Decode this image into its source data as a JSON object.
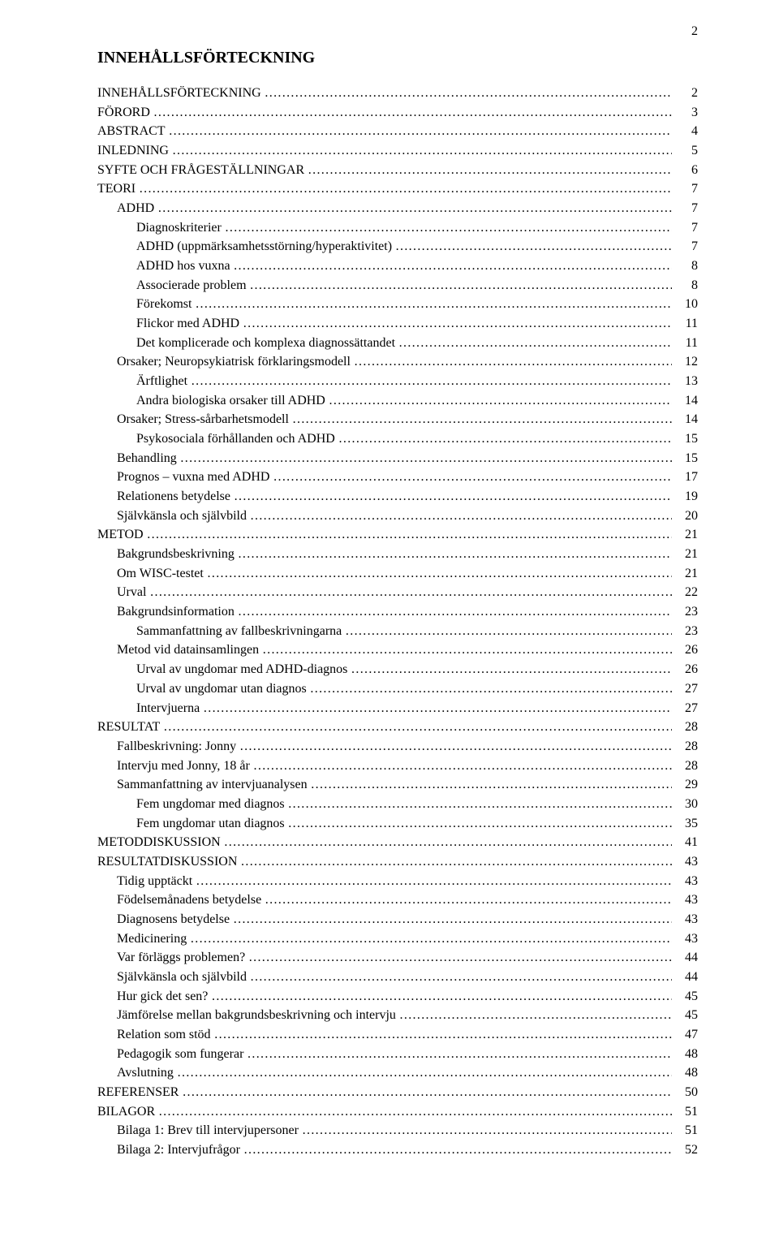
{
  "pageNumber": "2",
  "title": "INNEHÅLLSFÖRTECKNING",
  "toc": [
    {
      "label": "INNEHÅLLSFÖRTECKNING",
      "page": "2",
      "indent": 0
    },
    {
      "label": "FÖRORD",
      "page": "3",
      "indent": 0
    },
    {
      "label": "ABSTRACT",
      "page": "4",
      "indent": 0
    },
    {
      "label": "INLEDNING",
      "page": "5",
      "indent": 0
    },
    {
      "label": "SYFTE OCH FRÅGESTÄLLNINGAR",
      "page": "6",
      "indent": 0
    },
    {
      "label": "TEORI",
      "page": "7",
      "indent": 0
    },
    {
      "label": "ADHD",
      "page": "7",
      "indent": 1
    },
    {
      "label": "Diagnoskriterier",
      "page": "7",
      "indent": 2
    },
    {
      "label": "ADHD (uppmärksamhetsstörning/hyperaktivitet)",
      "page": "7",
      "indent": 2
    },
    {
      "label": "ADHD hos vuxna",
      "page": "8",
      "indent": 2
    },
    {
      "label": "Associerade problem",
      "page": "8",
      "indent": 2
    },
    {
      "label": "Förekomst",
      "page": "10",
      "indent": 2
    },
    {
      "label": "Flickor med ADHD",
      "page": "11",
      "indent": 2
    },
    {
      "label": "Det komplicerade och komplexa diagnossättandet",
      "page": "11",
      "indent": 2
    },
    {
      "label": "Orsaker; Neuropsykiatrisk förklaringsmodell",
      "page": "12",
      "indent": 1
    },
    {
      "label": "Ärftlighet",
      "page": "13",
      "indent": 2
    },
    {
      "label": "Andra biologiska orsaker till ADHD",
      "page": "14",
      "indent": 2
    },
    {
      "label": "Orsaker; Stress-sårbarhetsmodell",
      "page": "14",
      "indent": 1
    },
    {
      "label": "Psykosociala förhållanden och ADHD",
      "page": "15",
      "indent": 2
    },
    {
      "label": "Behandling",
      "page": "15",
      "indent": 1
    },
    {
      "label": "Prognos – vuxna med ADHD",
      "page": "17",
      "indent": 1
    },
    {
      "label": "Relationens betydelse",
      "page": "19",
      "indent": 1
    },
    {
      "label": "Självkänsla och självbild",
      "page": "20",
      "indent": 1
    },
    {
      "label": "METOD",
      "page": "21",
      "indent": 0
    },
    {
      "label": "Bakgrundsbeskrivning",
      "page": "21",
      "indent": 1
    },
    {
      "label": "Om WISC-testet",
      "page": "21",
      "indent": 1
    },
    {
      "label": "Urval",
      "page": "22",
      "indent": 1
    },
    {
      "label": "Bakgrundsinformation",
      "page": "23",
      "indent": 1
    },
    {
      "label": "Sammanfattning av fallbeskrivningarna",
      "page": "23",
      "indent": 2
    },
    {
      "label": "Metod vid datainsamlingen",
      "page": "26",
      "indent": 1
    },
    {
      "label": "Urval av ungdomar med ADHD-diagnos",
      "page": "26",
      "indent": 2
    },
    {
      "label": "Urval av ungdomar utan diagnos",
      "page": "27",
      "indent": 2
    },
    {
      "label": "Intervjuerna",
      "page": "27",
      "indent": 2
    },
    {
      "label": "RESULTAT",
      "page": "28",
      "indent": 0
    },
    {
      "label": "Fallbeskrivning: Jonny",
      "page": "28",
      "indent": 1
    },
    {
      "label": "Intervju med Jonny, 18 år",
      "page": "28",
      "indent": 1
    },
    {
      "label": "Sammanfattning av intervjuanalysen",
      "page": "29",
      "indent": 1
    },
    {
      "label": "Fem ungdomar med diagnos",
      "page": "30",
      "indent": 2
    },
    {
      "label": "Fem ungdomar utan diagnos",
      "page": "35",
      "indent": 2
    },
    {
      "label": "METODDISKUSSION",
      "page": "41",
      "indent": 0
    },
    {
      "label": "RESULTATDISKUSSION",
      "page": "43",
      "indent": 0
    },
    {
      "label": "Tidig upptäckt",
      "page": "43",
      "indent": 1
    },
    {
      "label": "Födelsemånadens betydelse",
      "page": "43",
      "indent": 1
    },
    {
      "label": "Diagnosens betydelse",
      "page": "43",
      "indent": 1
    },
    {
      "label": "Medicinering",
      "page": "43",
      "indent": 1
    },
    {
      "label": "Var förläggs problemen?",
      "page": "44",
      "indent": 1
    },
    {
      "label": "Självkänsla och självbild",
      "page": "44",
      "indent": 1
    },
    {
      "label": "Hur gick det sen?",
      "page": "45",
      "indent": 1
    },
    {
      "label": "Jämförelse mellan bakgrundsbeskrivning och intervju",
      "page": "45",
      "indent": 1
    },
    {
      "label": "Relation som stöd",
      "page": "47",
      "indent": 1
    },
    {
      "label": "Pedagogik som fungerar",
      "page": "48",
      "indent": 1
    },
    {
      "label": "Avslutning",
      "page": "48",
      "indent": 1
    },
    {
      "label": "REFERENSER",
      "page": "50",
      "indent": 0
    },
    {
      "label": "BILAGOR",
      "page": "51",
      "indent": 0
    },
    {
      "label": "Bilaga 1: Brev till intervjupersoner",
      "page": "51",
      "indent": 1
    },
    {
      "label": "Bilaga 2: Intervjufrågor",
      "page": "52",
      "indent": 1
    }
  ]
}
